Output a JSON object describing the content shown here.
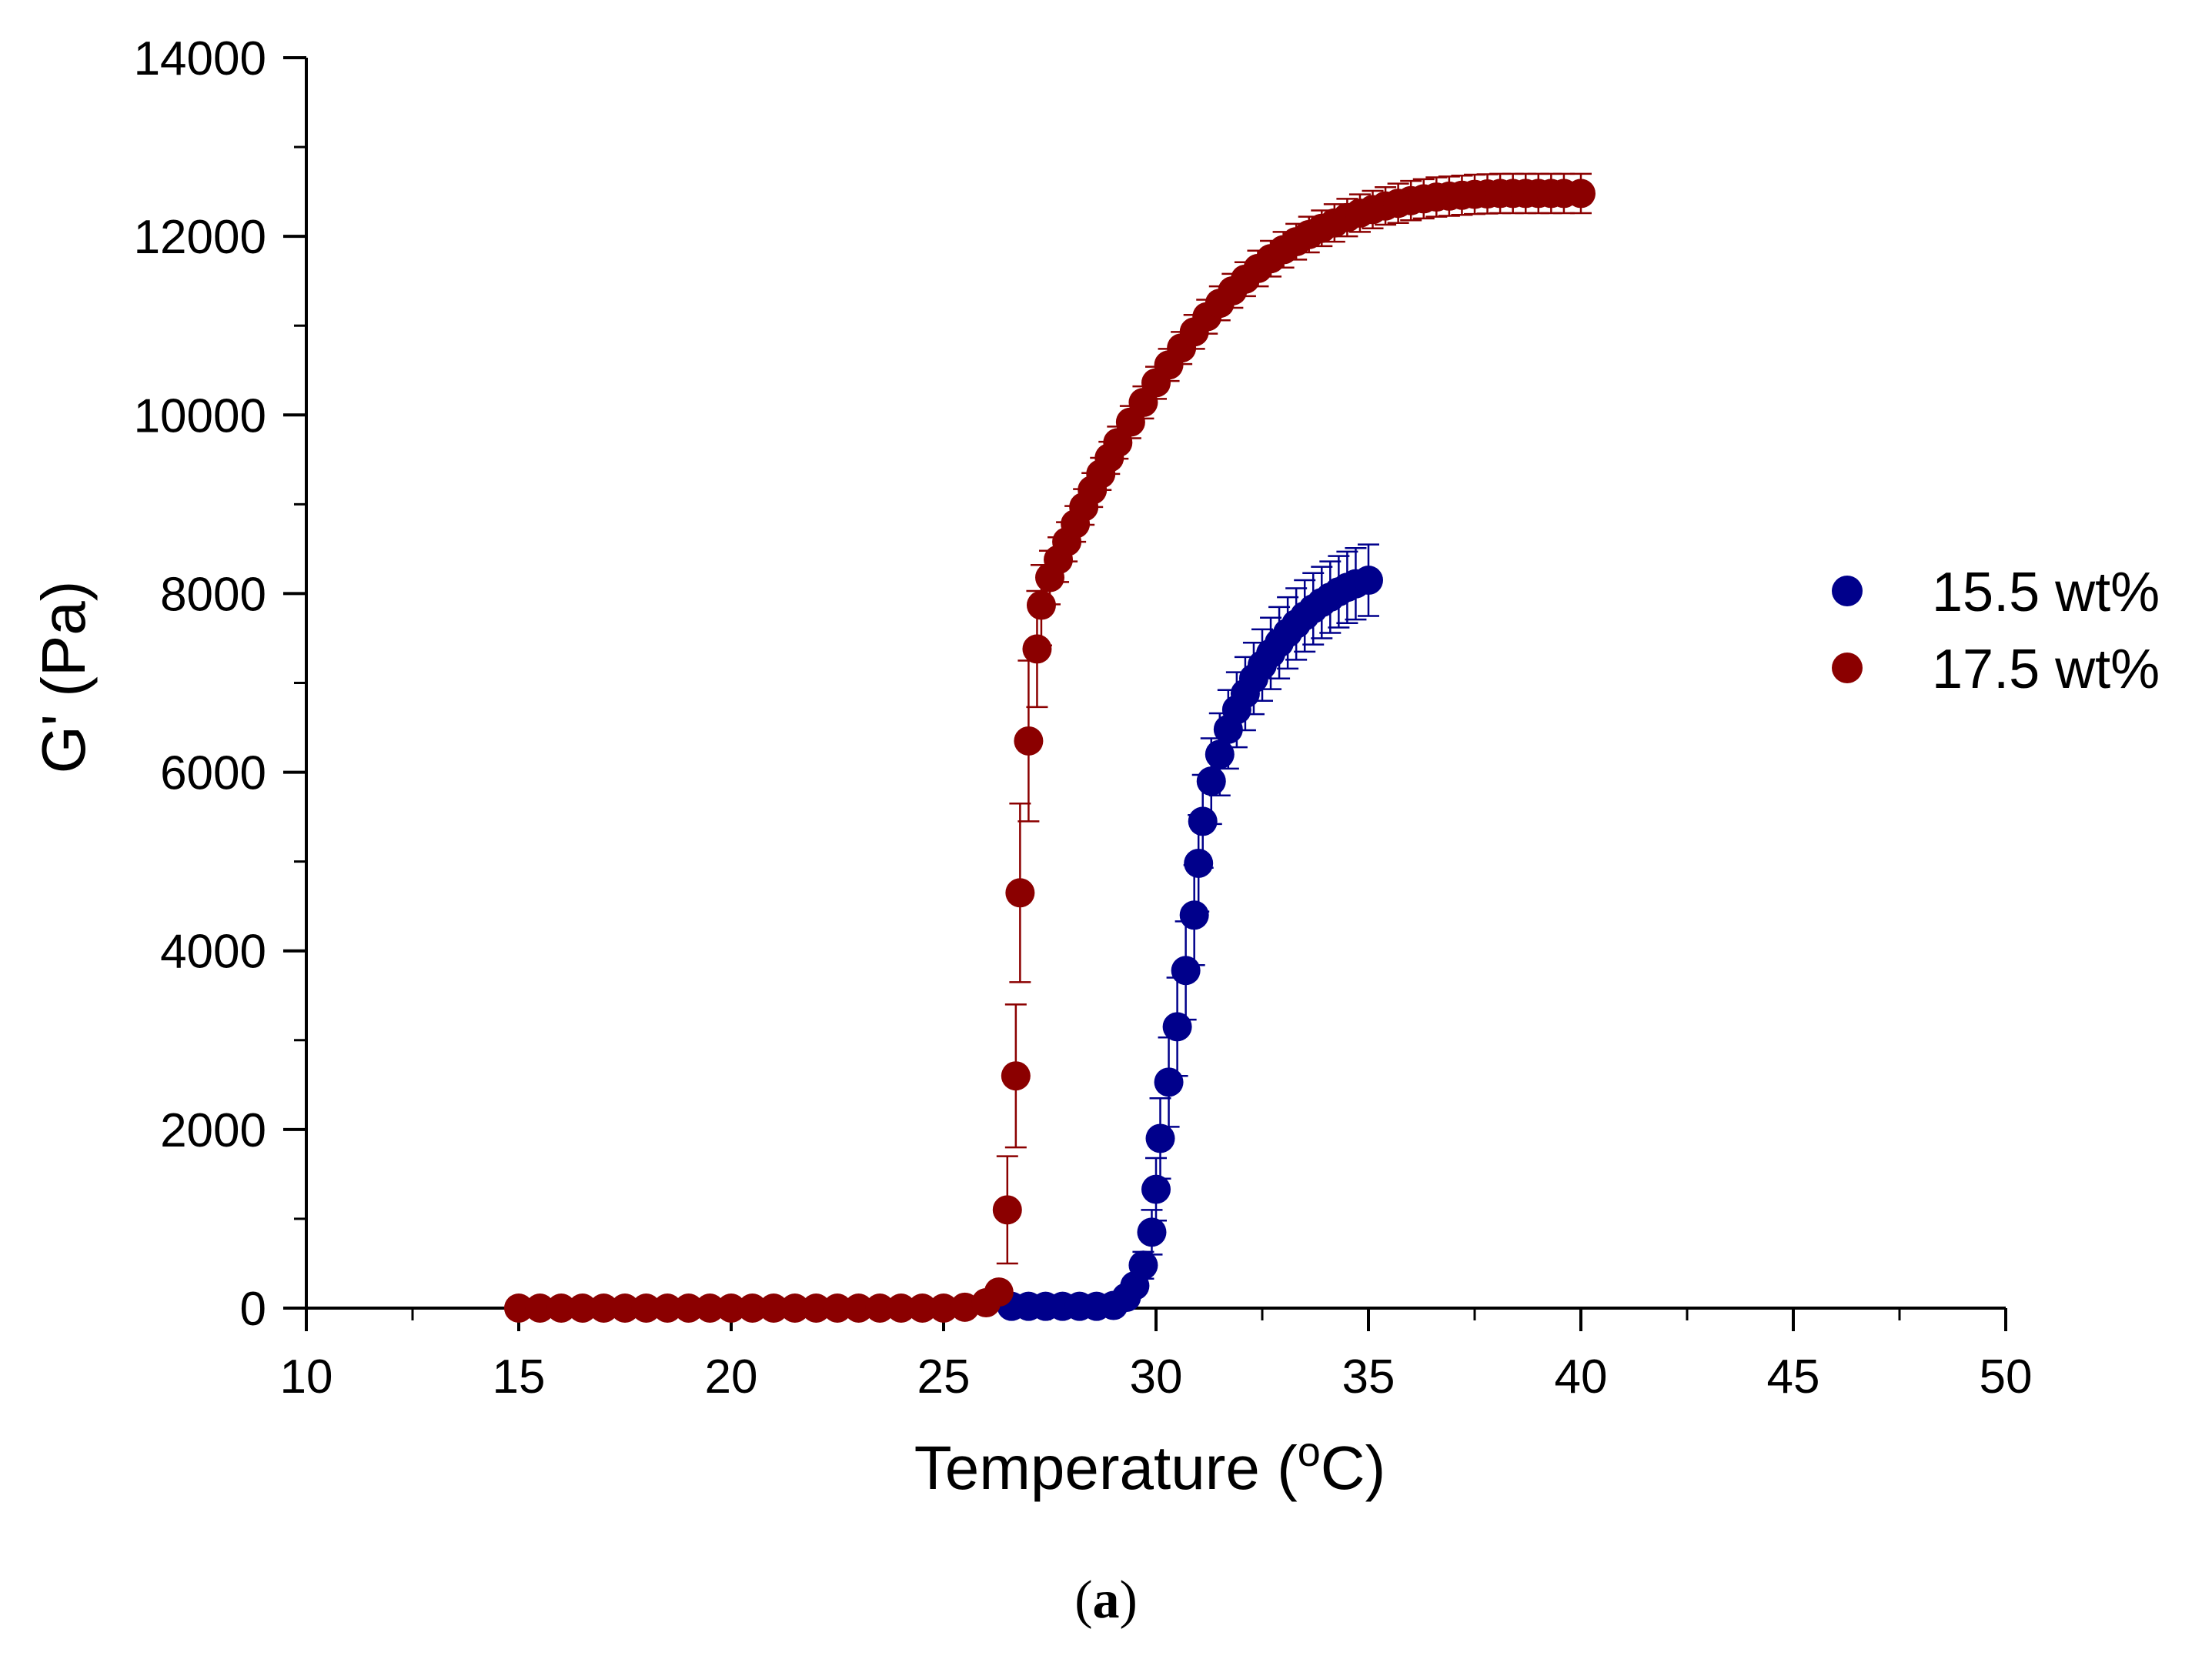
{
  "chart_data": {
    "type": "scatter",
    "xlabel": "Temperature (",
    "xlabel_sup": "o",
    "xlabel_suffix": "C)",
    "ylabel": "G' (Pa)",
    "xlim": [
      10,
      50
    ],
    "ylim": [
      0,
      14000
    ],
    "x_ticks": [
      10,
      15,
      20,
      25,
      30,
      35,
      40,
      45,
      50
    ],
    "y_ticks": [
      0,
      2000,
      4000,
      6000,
      8000,
      10000,
      12000,
      14000
    ],
    "grid": false,
    "legend_position": "right",
    "series": [
      {
        "name": "15.5 wt%",
        "color": "#00008B",
        "points": [
          [
            26.6,
            20
          ],
          [
            27.0,
            20
          ],
          [
            27.4,
            20
          ],
          [
            27.8,
            20
          ],
          [
            28.2,
            20
          ],
          [
            28.6,
            20
          ],
          [
            29.0,
            30
          ],
          [
            29.3,
            120
          ],
          [
            29.5,
            250
          ],
          [
            29.7,
            480
          ],
          [
            29.9,
            850
          ],
          [
            30.0,
            1330
          ],
          [
            30.1,
            1900
          ],
          [
            30.3,
            2530
          ],
          [
            30.5,
            3150
          ],
          [
            30.7,
            3780
          ],
          [
            30.9,
            4400
          ],
          [
            31.0,
            4980
          ],
          [
            31.1,
            5450
          ],
          [
            31.3,
            5900
          ],
          [
            31.5,
            6200
          ],
          [
            31.7,
            6480
          ],
          [
            31.9,
            6700
          ],
          [
            32.1,
            6880
          ],
          [
            32.3,
            7050
          ],
          [
            32.5,
            7200
          ],
          [
            32.7,
            7330
          ],
          [
            32.9,
            7450
          ],
          [
            33.1,
            7560
          ],
          [
            33.3,
            7660
          ],
          [
            33.5,
            7750
          ],
          [
            33.7,
            7830
          ],
          [
            33.9,
            7900
          ],
          [
            34.1,
            7960
          ],
          [
            34.3,
            8020
          ],
          [
            34.5,
            8070
          ],
          [
            34.7,
            8110
          ],
          [
            35.0,
            8150
          ]
        ],
        "errors": [
          0,
          0,
          0,
          0,
          0,
          0,
          5,
          40,
          80,
          150,
          250,
          350,
          450,
          500,
          550,
          550,
          560,
          540,
          520,
          480,
          460,
          440,
          420,
          410,
          400,
          400,
          400,
          400,
          400,
          400,
          400,
          400,
          400,
          400,
          400,
          400,
          400,
          400
        ]
      },
      {
        "name": "17.5 wt%",
        "color": "#8B0000",
        "points": [
          [
            15.0,
            0
          ],
          [
            15.5,
            0
          ],
          [
            16.0,
            0
          ],
          [
            16.5,
            0
          ],
          [
            17.0,
            0
          ],
          [
            17.5,
            0
          ],
          [
            18.0,
            0
          ],
          [
            18.5,
            0
          ],
          [
            19.0,
            0
          ],
          [
            19.5,
            0
          ],
          [
            20.0,
            0
          ],
          [
            20.5,
            0
          ],
          [
            21.0,
            0
          ],
          [
            21.5,
            0
          ],
          [
            22.0,
            0
          ],
          [
            22.5,
            0
          ],
          [
            23.0,
            0
          ],
          [
            23.5,
            0
          ],
          [
            24.0,
            0
          ],
          [
            24.5,
            0
          ],
          [
            25.0,
            0
          ],
          [
            25.5,
            10
          ],
          [
            26.0,
            60
          ],
          [
            26.3,
            180
          ],
          [
            26.5,
            1100
          ],
          [
            26.7,
            2600
          ],
          [
            26.8,
            4650
          ],
          [
            27.0,
            6350
          ],
          [
            27.2,
            7380
          ],
          [
            27.3,
            7870
          ],
          [
            27.5,
            8180
          ],
          [
            27.7,
            8380
          ],
          [
            27.9,
            8580
          ],
          [
            28.1,
            8780
          ],
          [
            28.3,
            8970
          ],
          [
            28.5,
            9160
          ],
          [
            28.7,
            9340
          ],
          [
            28.9,
            9520
          ],
          [
            29.1,
            9690
          ],
          [
            29.4,
            9920
          ],
          [
            29.7,
            10140
          ],
          [
            30.0,
            10360
          ],
          [
            30.3,
            10560
          ],
          [
            30.6,
            10750
          ],
          [
            30.9,
            10930
          ],
          [
            31.2,
            11100
          ],
          [
            31.5,
            11250
          ],
          [
            31.8,
            11390
          ],
          [
            32.1,
            11520
          ],
          [
            32.4,
            11640
          ],
          [
            32.7,
            11750
          ],
          [
            33.0,
            11850
          ],
          [
            33.3,
            11940
          ],
          [
            33.6,
            12020
          ],
          [
            33.9,
            12090
          ],
          [
            34.2,
            12150
          ],
          [
            34.5,
            12210
          ],
          [
            34.8,
            12260
          ],
          [
            35.1,
            12300
          ],
          [
            35.4,
            12340
          ],
          [
            35.7,
            12370
          ],
          [
            36.0,
            12400
          ],
          [
            36.3,
            12420
          ],
          [
            36.6,
            12440
          ],
          [
            36.9,
            12450
          ],
          [
            37.2,
            12460
          ],
          [
            37.5,
            12470
          ],
          [
            37.8,
            12475
          ],
          [
            38.1,
            12480
          ],
          [
            38.4,
            12480
          ],
          [
            38.7,
            12480
          ],
          [
            39.0,
            12480
          ],
          [
            39.3,
            12480
          ],
          [
            39.6,
            12480
          ],
          [
            40.0,
            12480
          ]
        ],
        "errors": [
          0,
          0,
          0,
          0,
          0,
          0,
          0,
          0,
          0,
          0,
          0,
          0,
          0,
          0,
          0,
          0,
          0,
          0,
          0,
          0,
          0,
          5,
          20,
          80,
          600,
          800,
          1000,
          900,
          650,
          450,
          300,
          250,
          220,
          200,
          200,
          190,
          180,
          180,
          180,
          180,
          180,
          180,
          180,
          180,
          190,
          190,
          190,
          190,
          190,
          200,
          200,
          200,
          200,
          200,
          200,
          210,
          210,
          210,
          210,
          210,
          220,
          220,
          220,
          220,
          220,
          220,
          220,
          220,
          220,
          220,
          220,
          220,
          220,
          220,
          220
        ]
      }
    ]
  },
  "caption": {
    "open": "(",
    "label": "a",
    "close": ")"
  }
}
